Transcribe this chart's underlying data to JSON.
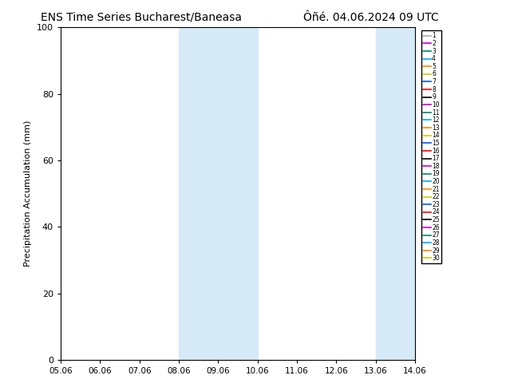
{
  "title_left": "ENS Time Series Bucharest/Baneasa",
  "title_right": "Ôñé. 04.06.2024 09 UTC",
  "ylabel": "Precipitation Accumulation (mm)",
  "ylim": [
    0,
    100
  ],
  "x_ticks": [
    "05.06",
    "06.06",
    "07.06",
    "08.06",
    "09.06",
    "10.06",
    "11.06",
    "12.06",
    "13.06",
    "14.06"
  ],
  "x_tick_values": [
    0,
    1,
    2,
    3,
    4,
    5,
    6,
    7,
    8,
    9
  ],
  "shaded_regions": [
    [
      3.0,
      3.5
    ],
    [
      3.5,
      5.0
    ],
    [
      8.0,
      8.5
    ],
    [
      8.5,
      9.0
    ]
  ],
  "shaded_color": "#d6eaf7",
  "background_color": "#ffffff",
  "num_members": 30,
  "member_colors": [
    "#aaaaaa",
    "#cc00cc",
    "#008866",
    "#00aaff",
    "#ff8800",
    "#cccc00",
    "#0055ff",
    "#ff0000",
    "#000000",
    "#cc00cc",
    "#008866",
    "#00aaff",
    "#ff8800",
    "#cccc00",
    "#0055ff",
    "#ff0000",
    "#000000",
    "#cc00cc",
    "#008866",
    "#00aaff",
    "#ff8800",
    "#cccc00",
    "#0055ff",
    "#ff0000",
    "#000000",
    "#cc00cc",
    "#008866",
    "#00aaff",
    "#ff8800",
    "#cccc00"
  ],
  "yticks": [
    0,
    20,
    40,
    60,
    80,
    100
  ],
  "legend_fontsize": 5.5,
  "title_fontsize": 10,
  "axis_label_fontsize": 8
}
